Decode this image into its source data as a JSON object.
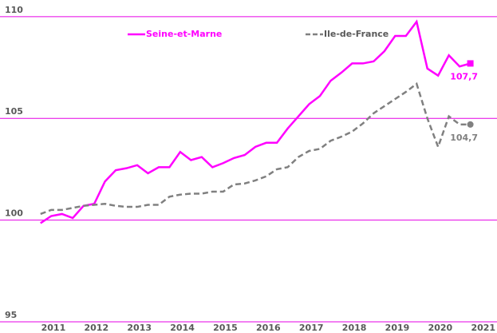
{
  "chart_data": {
    "type": "line",
    "x": [
      2010.7,
      2010.95,
      2011.2,
      2011.45,
      2011.7,
      2011.95,
      2012.2,
      2012.45,
      2012.7,
      2012.95,
      2013.2,
      2013.45,
      2013.7,
      2013.95,
      2014.2,
      2014.45,
      2014.7,
      2014.95,
      2015.2,
      2015.45,
      2015.7,
      2015.95,
      2016.2,
      2016.45,
      2016.7,
      2016.95,
      2017.2,
      2017.45,
      2017.7,
      2017.95,
      2018.2,
      2018.45,
      2018.7,
      2018.95,
      2019.2,
      2019.45,
      2019.7,
      2019.95,
      2020.2,
      2020.45,
      2020.7
    ],
    "series": [
      {
        "name": "Seine-et-Marne",
        "color": "#ff00ff",
        "dashed": false,
        "marker": "square",
        "values": [
          99.85,
          100.2,
          100.3,
          100.1,
          100.7,
          100.8,
          101.9,
          102.45,
          102.55,
          102.7,
          102.3,
          102.6,
          102.6,
          103.35,
          102.95,
          103.1,
          102.6,
          102.8,
          103.05,
          103.2,
          103.6,
          103.8,
          103.8,
          104.5,
          105.1,
          105.7,
          106.1,
          106.85,
          107.25,
          107.7,
          107.7,
          107.8,
          108.3,
          109.05,
          109.05,
          109.75,
          107.45,
          107.1,
          108.1,
          107.55,
          107.7
        ],
        "end_label": "107,7"
      },
      {
        "name": "Ile-de-France",
        "color": "#808080",
        "dashed": true,
        "marker": "circle",
        "values": [
          100.3,
          100.5,
          100.5,
          100.6,
          100.7,
          100.75,
          100.8,
          100.7,
          100.65,
          100.65,
          100.75,
          100.75,
          101.15,
          101.25,
          101.3,
          101.3,
          101.4,
          101.4,
          101.75,
          101.8,
          101.95,
          102.15,
          102.5,
          102.6,
          103.1,
          103.4,
          103.5,
          103.9,
          104.1,
          104.35,
          104.75,
          105.25,
          105.6,
          105.95,
          106.3,
          106.7,
          105.0,
          103.6,
          105.1,
          104.7,
          104.7
        ],
        "end_label": "104,7"
      }
    ],
    "xlim": [
      2010.5,
      2021.32
    ],
    "xticks": [
      2011,
      2012,
      2013,
      2014,
      2015,
      2016,
      2017,
      2018,
      2019,
      2020,
      2021
    ],
    "ylim": [
      95,
      110.7
    ],
    "yticks": [
      95,
      100,
      105,
      110
    ],
    "grid": true,
    "grid_color": "#e600e6",
    "legend": "top"
  }
}
